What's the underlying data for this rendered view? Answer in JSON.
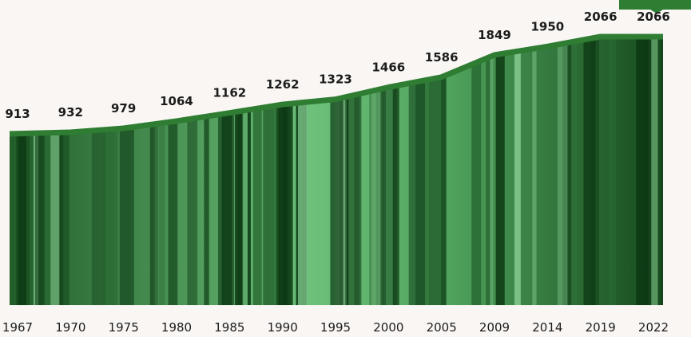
{
  "chart_data": {
    "type": "area",
    "categories": [
      "1967",
      "1970",
      "1975",
      "1980",
      "1985",
      "1990",
      "1995",
      "2000",
      "2005",
      "2009",
      "2014",
      "2019",
      "2022"
    ],
    "values": [
      913,
      932,
      979,
      1064,
      1162,
      1262,
      1323,
      1466,
      1586,
      1849,
      1950,
      2066,
      2066
    ],
    "color": "#2f7d32"
  }
}
